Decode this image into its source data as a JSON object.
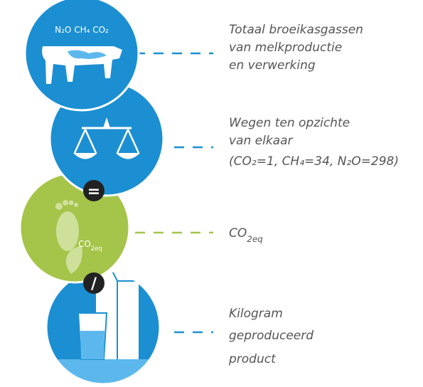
{
  "nodes": [
    {
      "label": "N₂O CH₄ CO₂",
      "description": [
        "Totaal broeikasgassen",
        "van melkproductie",
        "en verwerking"
      ]
    },
    {
      "description": [
        "Wegen ten opzichte",
        "van elkaar",
        "(CO₂=1, CH₄=34, N₂O=298)"
      ]
    },
    {
      "label": [
        {
          "text": "CO"
        },
        {
          "sub": "2eq"
        }
      ],
      "description": [
        [
          {
            "text": "CO"
          },
          {
            "sub": "2eq"
          }
        ]
      ]
    },
    {
      "description": [
        "Kilogram",
        "geproduceerd",
        "product"
      ]
    }
  ],
  "operators": [
    "=",
    "/"
  ]
}
